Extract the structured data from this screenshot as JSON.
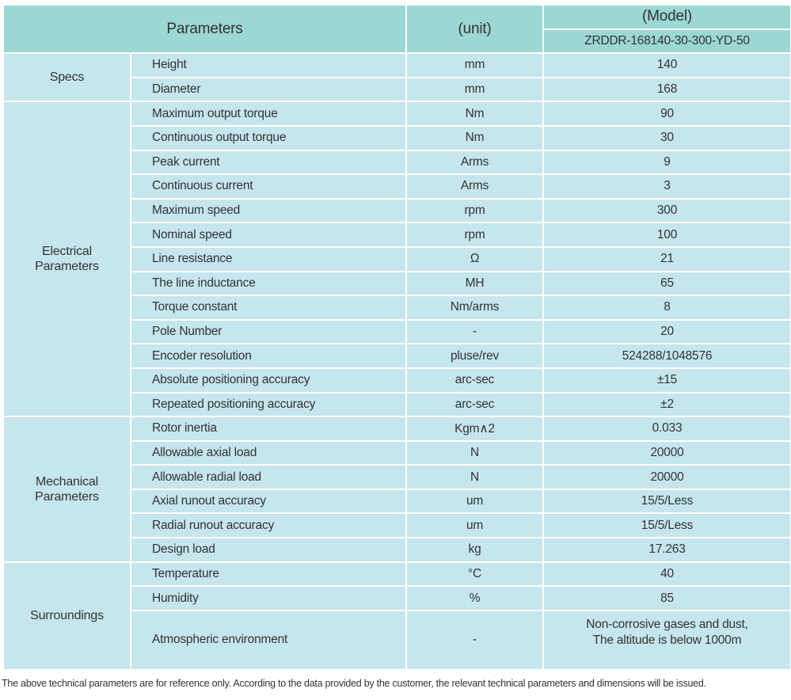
{
  "header": {
    "parameters": "Parameters",
    "unit": "(unit)",
    "model_label": "(Model)",
    "model": "ZRDDR-168140-30-300-YD-50"
  },
  "groups": [
    {
      "name": "Specs",
      "rows": [
        [
          "Height",
          "mm",
          "140"
        ],
        [
          "Diameter",
          "mm",
          "168"
        ]
      ]
    },
    {
      "name": "Electrical Parameters",
      "rows": [
        [
          "Maximum output torque",
          "Nm",
          "90"
        ],
        [
          "Continuous output torque",
          "Nm",
          "30"
        ],
        [
          "Peak current",
          "Arms",
          "9"
        ],
        [
          "Continuous current",
          "Arms",
          "3"
        ],
        [
          "Maximum speed",
          "rpm",
          "300"
        ],
        [
          "Nominal speed",
          "rpm",
          "100"
        ],
        [
          "Line resistance",
          "Ω",
          "21"
        ],
        [
          "The line inductance",
          "MH",
          "65"
        ],
        [
          "Torque constant",
          "Nm/arms",
          "8"
        ],
        [
          "Pole Number",
          "-",
          "20"
        ],
        [
          "Encoder resolution",
          "pluse/rev",
          "524288/1048576"
        ],
        [
          "Absolute positioning accuracy",
          "arc-sec",
          "±15"
        ],
        [
          "Repeated positioning accuracy",
          "arc-sec",
          "±2"
        ]
      ]
    },
    {
      "name": "Mechanical Parameters",
      "rows": [
        [
          "Rotor inertia",
          "Kgm∧2",
          "0.033"
        ],
        [
          "Allowable axial load",
          "N",
          "20000"
        ],
        [
          "Allowable radial load",
          "N",
          "20000"
        ],
        [
          "Axial runout accuracy",
          "um",
          "15/5/Less"
        ],
        [
          "Radial runout accuracy",
          "um",
          "15/5/Less"
        ],
        [
          "Design load",
          "kg",
          "17.263"
        ]
      ]
    },
    {
      "name": "Surroundings",
      "rows": [
        [
          "Temperature",
          "°C",
          "40"
        ],
        [
          "Humidity",
          "%",
          "85"
        ],
        [
          "Atmospheric environment",
          "-",
          "Non-corrosive gases and dust,\nThe altitude is below 1000m"
        ]
      ]
    }
  ],
  "footnote": "The above technical parameters are for reference only. According to the data provided by the customer, the relevant technical parameters and dimensions will be issued.",
  "colors": {
    "header": "#9bd7d3",
    "body": "#c5e6ed"
  }
}
